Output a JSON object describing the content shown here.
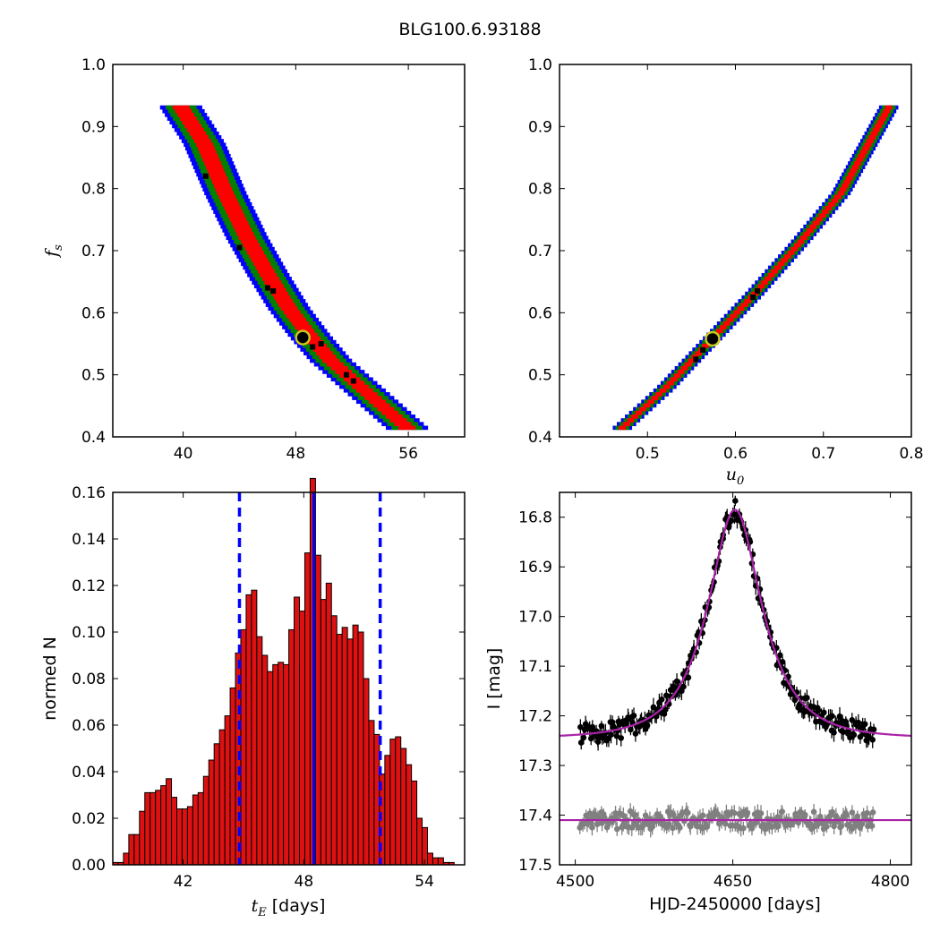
{
  "figure_title": "BLG100.6.93188",
  "colors": {
    "sigma1": "#ff0000",
    "sigma2": "#008000",
    "sigma3": "#0000ff",
    "best_points": "#000000",
    "best_fit_marker_edge": "#c8c81e",
    "hist_bar": "#dd1111",
    "hist_lines": "#0000ff",
    "model": "#aa22aa",
    "data_main": "#000000",
    "data_resid": "#808080"
  },
  "chart_data": [
    {
      "id": "panel-fs-vs-tE",
      "type": "heatmap",
      "title": "",
      "xlabel": "",
      "ylabel": "f_s",
      "xlim": [
        35,
        60
      ],
      "ylim": [
        0.4,
        1.0
      ],
      "xticks": [
        "40",
        "48",
        "56"
      ],
      "yticks": [
        "0.4",
        "0.5",
        "0.6",
        "0.7",
        "0.8",
        "0.9",
        "1.0"
      ],
      "ridge": {
        "x": [
          39.8,
          41.5,
          43,
          44.5,
          46,
          47.5,
          49,
          50.5,
          52,
          53.5,
          55,
          56
        ],
        "y": [
          0.93,
          0.87,
          0.79,
          0.72,
          0.66,
          0.605,
          0.56,
          0.52,
          0.49,
          0.46,
          0.43,
          0.41
        ],
        "widths": {
          "sigma1": 0.6,
          "sigma2": 1.1,
          "sigma3": 1.5
        }
      },
      "best_points": [
        [
          46.0,
          0.64
        ],
        [
          46.4,
          0.635
        ],
        [
          49.2,
          0.545
        ],
        [
          49.8,
          0.55
        ],
        [
          51.6,
          0.5
        ],
        [
          52.1,
          0.49
        ],
        [
          41.6,
          0.82
        ],
        [
          44.0,
          0.705
        ]
      ],
      "best_fit": [
        48.5,
        0.56
      ],
      "grid": false
    },
    {
      "id": "panel-fs-vs-u0",
      "type": "heatmap",
      "title": "",
      "xlabel": "u_0",
      "ylabel": "",
      "xlim": [
        0.4,
        0.8
      ],
      "ylim": [
        0.4,
        1.0
      ],
      "xticks": [
        "0.5",
        "0.6",
        "0.7",
        "0.8"
      ],
      "yticks": [
        "0.4",
        "0.5",
        "0.6",
        "0.7",
        "0.8",
        "0.9",
        "1.0"
      ],
      "ridge": {
        "x": [
          0.47,
          0.52,
          0.57,
          0.62,
          0.67,
          0.72,
          0.775
        ],
        "y": [
          0.41,
          0.475,
          0.55,
          0.625,
          0.705,
          0.79,
          0.93
        ],
        "widths": {
          "sigma1": 0.004,
          "sigma2": 0.008,
          "sigma3": 0.011
        }
      },
      "best_points": [
        [
          0.555,
          0.525
        ],
        [
          0.563,
          0.54
        ],
        [
          0.62,
          0.625
        ],
        [
          0.625,
          0.635
        ]
      ],
      "best_fit": [
        0.574,
        0.558
      ],
      "grid": false
    },
    {
      "id": "panel-tE-hist",
      "type": "bar",
      "title": "",
      "xlabel": "t_E [days]",
      "ylabel": "normed N",
      "xlim": [
        38.5,
        56.0
      ],
      "ylim": [
        0.0,
        0.16
      ],
      "xticks": [
        "42",
        "48",
        "54"
      ],
      "yticks": [
        "0.00",
        "0.02",
        "0.04",
        "0.06",
        "0.08",
        "0.10",
        "0.12",
        "0.14",
        "0.16"
      ],
      "bin_start": 38.5,
      "bin_width": 0.2653,
      "values": [
        0.001,
        0.001,
        0.005,
        0.013,
        0.013,
        0.023,
        0.031,
        0.031,
        0.032,
        0.034,
        0.037,
        0.029,
        0.024,
        0.024,
        0.025,
        0.03,
        0.031,
        0.038,
        0.045,
        0.052,
        0.058,
        0.064,
        0.076,
        0.091,
        0.101,
        0.116,
        0.118,
        0.098,
        0.09,
        0.083,
        0.086,
        0.087,
        0.086,
        0.101,
        0.115,
        0.109,
        0.134,
        0.166,
        0.133,
        0.114,
        0.121,
        0.107,
        0.099,
        0.102,
        0.097,
        0.103,
        0.1,
        0.08,
        0.062,
        0.056,
        0.039,
        0.047,
        0.054,
        0.055,
        0.05,
        0.043,
        0.036,
        0.02,
        0.016,
        0.005,
        0.003,
        0.003,
        0.001,
        0.001,
        0.0,
        0.0
      ],
      "median_line": 48.5,
      "percentile_lines": [
        44.8,
        51.8
      ],
      "grid": false
    },
    {
      "id": "panel-lightcurve",
      "type": "scatter",
      "title": "",
      "xlabel": "HJD-2450000 [days]",
      "ylabel": "I [mag]",
      "xlim": [
        4485,
        4820
      ],
      "ylim": [
        17.5,
        16.75
      ],
      "ylim_display": "inverted",
      "xticks": [
        "4500",
        "4650",
        "4800"
      ],
      "yticks": [
        "16.8",
        "16.9",
        "17.0",
        "17.1",
        "17.2",
        "17.3",
        "17.4",
        "17.5"
      ],
      "model": {
        "baseline": 17.245,
        "peak": 16.785,
        "t0": 4652,
        "tE": 48.5,
        "u0": 0.574
      },
      "data": {
        "x_range": [
          4505,
          4785
        ],
        "n_points": 230,
        "scatter": 0.02
      },
      "residuals": {
        "level": 17.41,
        "x_range": [
          4505,
          4785
        ],
        "n_points": 230,
        "scatter": 0.018
      },
      "grid": false
    }
  ]
}
